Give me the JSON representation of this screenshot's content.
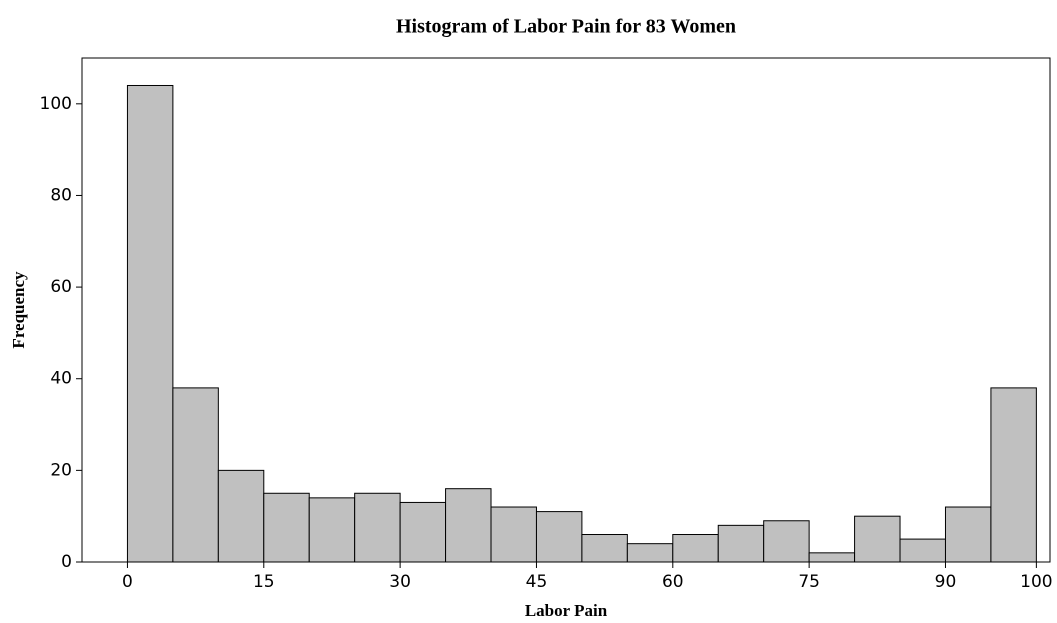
{
  "chart_data": {
    "type": "histogram",
    "title": "Histogram of Labor Pain for 83 Women",
    "x_label": "Labor Pain",
    "y_label": "Frequency",
    "bins": [
      0,
      5,
      10,
      15,
      20,
      25,
      30,
      35,
      40,
      45,
      50,
      55,
      60,
      65,
      70,
      75,
      80,
      85,
      90,
      95,
      100
    ],
    "values": [
      104,
      38,
      20,
      15,
      14,
      15,
      13,
      16,
      12,
      11,
      6,
      4,
      6,
      8,
      9,
      2,
      10,
      5,
      12,
      38
    ],
    "color": "#c0c0c0",
    "xlim": [
      -5,
      101.5
    ],
    "ylim": [
      0,
      110
    ],
    "xticks": [
      0,
      15,
      30,
      45,
      60,
      75,
      90,
      100
    ],
    "yticks": [
      0,
      20,
      40,
      60,
      80,
      100
    ]
  }
}
